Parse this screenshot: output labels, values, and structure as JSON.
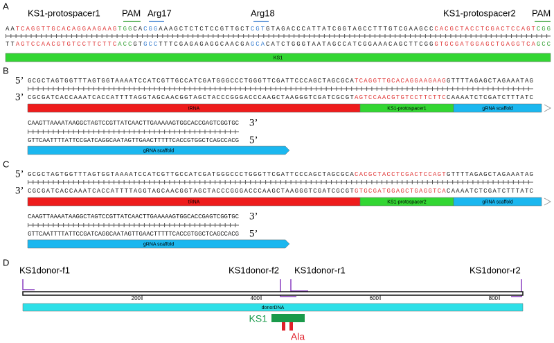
{
  "panels": {
    "a": {
      "letter": "A",
      "labels": [
        "KS1-protospacer1",
        "PAM",
        "Arg17",
        "Arg18",
        "KS1-protospacer2",
        "PAM"
      ],
      "top": [
        {
          "text": "AA",
          "color": "#222222"
        },
        {
          "text": "TCAGGTTGCACAGGAAGAAG",
          "color": "#e03a3a"
        },
        {
          "text": "TGG",
          "color": "#3aa33a"
        },
        {
          "text": "CA",
          "color": "#222222"
        },
        {
          "text": "CGG",
          "color": "#3a7fd0"
        },
        {
          "text": "AAAGCTCTCTCCGTTGCT",
          "color": "#222222"
        },
        {
          "text": "CGT",
          "color": "#3a7fd0"
        },
        {
          "text": "GTAGACCCATTATCGGTAGCCTTTGTCGAAGCC",
          "color": "#222222"
        },
        {
          "text": "CACGCTACCTCGACTCCAGT",
          "color": "#e03a3a"
        },
        {
          "text": "CGG",
          "color": "#3aa33a"
        }
      ],
      "bottom": [
        {
          "text": "TT",
          "color": "#222222"
        },
        {
          "text": "AGTCCAACGTGTCCTTCTTC",
          "color": "#e03a3a"
        },
        {
          "text": "ACC",
          "color": "#3aa33a"
        },
        {
          "text": "GT",
          "color": "#222222"
        },
        {
          "text": "GCC",
          "color": "#3a7fd0"
        },
        {
          "text": "TTTCGAGAGAGGCAACGA",
          "color": "#222222"
        },
        {
          "text": "GCA",
          "color": "#3a7fd0"
        },
        {
          "text": "CATCTGGGTAATAGCCATCGGAAACAGCTTCGG",
          "color": "#222222"
        },
        {
          "text": "GTGCGATGGAGCTGAGGTCA",
          "color": "#e03a3a"
        },
        {
          "text": "GCC",
          "color": "#3aa33a"
        }
      ],
      "bar": "KS1"
    },
    "b": {
      "letter": "B",
      "row1": {
        "top_end": "5’",
        "bottom_end": "3’",
        "top": [
          {
            "text": "GCGCTAGTGGTTTAGTGGTAAAATCCATCGTTGCCATCGATGGGCCCTGGGTTCGATTCCCAGCTAGCGCA",
            "color": "#222222"
          },
          {
            "text": "TCAGGTTGCACAGGAAGAAG",
            "color": "#e03a3a"
          },
          {
            "text": "GTTTTAGAGCTAGAAATAG",
            "color": "#222222"
          }
        ],
        "bottom": [
          {
            "text": "CGCGATCACCAAATCACCATTTTAGGTAGCAACGGTAGCTACCCGGGACCCAAGCTAAGGGTCGATCGCGT",
            "color": "#222222"
          },
          {
            "text": "AGTCCAACGTGTCCTTCTTC",
            "color": "#e03a3a"
          },
          {
            "text": "CAAAATCTCGATCTTTATC",
            "color": "#222222"
          }
        ],
        "bars": [
          "tRNA",
          "KS1-protospacer1",
          "gRNA scaffold"
        ]
      },
      "row2": {
        "top_end": "3’",
        "bottom_end": "5’",
        "top": [
          {
            "text": "CAAGTTAAAATAAGGCTAGTCCGTTATCAACTTGAAAAAGTGGCACCGAGTCGGTGC",
            "color": "#222222"
          }
        ],
        "bottom": [
          {
            "text": "GTTCAATTTTATTCCGATCAGGCAATAGTTGAACTTTTTCACCGTGGCTCAGCCACG",
            "color": "#222222"
          }
        ],
        "bar": "gRNA scaffold"
      }
    },
    "c": {
      "letter": "C",
      "row1": {
        "top_end": "5’",
        "bottom_end": "3’",
        "top": [
          {
            "text": "GCGCTAGTGGTTTAGTGGTAAAATCCATCGTTGCCATCGATGGGCCCTGGGTTCGATTCCCAGCTAGCGCA",
            "color": "#222222"
          },
          {
            "text": "CACGCTACCTCGACTCCAGT",
            "color": "#e03a3a"
          },
          {
            "text": "GTTTTAGAGCTAGAAATAG",
            "color": "#222222"
          }
        ],
        "bottom": [
          {
            "text": "CGCGATCACCAAATCACCATTTTAGGTAGCAACGGTAGCTACCCGGGACCCAAGCTAAGGGTCGATCGCGT",
            "color": "#222222"
          },
          {
            "text": "GTGCGATGGAGCTGAGGTCA",
            "color": "#e03a3a"
          },
          {
            "text": "CAAAATCTCGATCTTTATC",
            "color": "#222222"
          }
        ],
        "bars": [
          "tRNA",
          "KS1-protospacer2",
          "gRNA scaffold"
        ]
      },
      "row2": {
        "top_end": "3’",
        "bottom_end": "5’",
        "top": [
          {
            "text": "CAAGTTAAAATAAGGCTAGTCCGTTATCAACTTGAAAAAGTGGCACCGAGTCGGTGC",
            "color": "#222222"
          }
        ],
        "bottom": [
          {
            "text": "GTTCAATTTTATTCCGATCAGGCAATAGTTGAACTTTTTCACCGTGGCTCAGCCACG",
            "color": "#222222"
          }
        ],
        "bar": "gRNA scaffold"
      }
    },
    "d": {
      "letter": "D",
      "primers": [
        "KS1donor-f1",
        "KS1donor-f2",
        "KS1donor-r1",
        "KS1donor-r2"
      ],
      "ruler_ticks": [
        200,
        400,
        600,
        800
      ],
      "bar": "donorDNA",
      "gene": "KS1",
      "mutation": "Ala"
    }
  }
}
